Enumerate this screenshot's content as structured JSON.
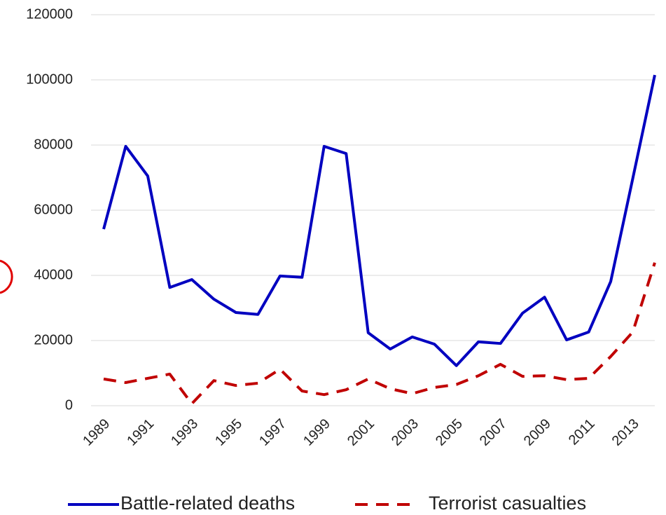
{
  "chart_data": {
    "type": "line",
    "x": [
      1989,
      1990,
      1991,
      1992,
      1993,
      1994,
      1995,
      1996,
      1997,
      1998,
      1999,
      2000,
      2001,
      2002,
      2003,
      2004,
      2005,
      2006,
      2007,
      2008,
      2009,
      2010,
      2011,
      2012,
      2013,
      2014
    ],
    "series": [
      {
        "name": "Battle-related deaths",
        "color": "#0000c0",
        "dash": false,
        "values": [
          54200,
          79600,
          70500,
          36300,
          38700,
          32700,
          28600,
          28000,
          39800,
          39400,
          79600,
          77400,
          22400,
          17400,
          21100,
          18900,
          12300,
          19600,
          19100,
          28400,
          33300,
          20200,
          22600,
          38100,
          69700,
          101500
        ]
      },
      {
        "name": "Terrorist casualties",
        "color": "#c00000",
        "dash": true,
        "values": [
          8200,
          7100,
          8400,
          9700,
          600,
          7700,
          6200,
          6900,
          11200,
          4500,
          3400,
          4900,
          8200,
          5200,
          3700,
          5600,
          6500,
          9200,
          12700,
          9000,
          9200,
          8000,
          8400,
          15100,
          22600,
          43900
        ]
      }
    ],
    "xlim": [
      1989,
      2014
    ],
    "xticks": [
      1989,
      1991,
      1993,
      1995,
      1997,
      1999,
      2001,
      2003,
      2005,
      2007,
      2009,
      2011,
      2013
    ],
    "ylim": [
      0,
      120000
    ],
    "yticks": [
      0,
      20000,
      40000,
      60000,
      80000,
      100000,
      120000
    ],
    "grid": true,
    "legend": "bottom"
  }
}
